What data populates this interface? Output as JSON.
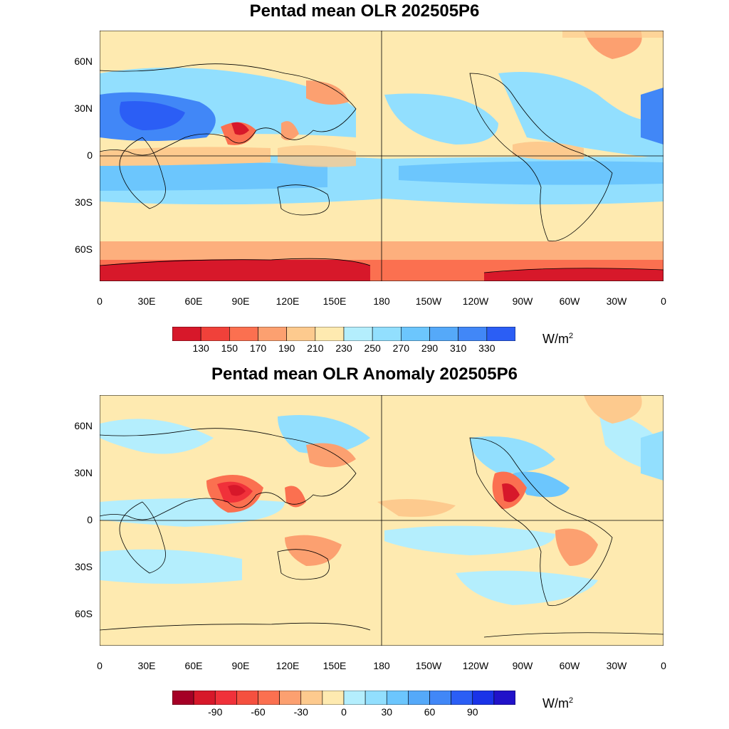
{
  "maps": [
    {
      "id": "top",
      "title": "Pentad mean OLR 202505P6",
      "units": "W/m",
      "units_sup": "2",
      "lat_labels": [
        "60N",
        "30N",
        "0",
        "30S",
        "60S"
      ],
      "lon_labels": [
        "0",
        "30E",
        "60E",
        "90E",
        "120E",
        "150E",
        "180",
        "150W",
        "120W",
        "90W",
        "60W",
        "30W",
        "0"
      ],
      "colorbar": {
        "colors": [
          "#d7182a",
          "#f0413a",
          "#fb7050",
          "#fca070",
          "#fdca8e",
          "#feeab0",
          "#b4eefd",
          "#92dffe",
          "#6cc6fd",
          "#55a9f9",
          "#4187f7",
          "#2b5ef5"
        ],
        "labels": [
          "130",
          "150",
          "170",
          "190",
          "210",
          "230",
          "250",
          "270",
          "290",
          "310",
          "330"
        ]
      }
    },
    {
      "id": "bottom",
      "title": "Pentad mean OLR Anomaly 202505P6",
      "units": "W/m",
      "units_sup": "2",
      "lat_labels": [
        "60N",
        "30N",
        "0",
        "30S",
        "60S"
      ],
      "lon_labels": [
        "0",
        "30E",
        "60E",
        "90E",
        "120E",
        "150E",
        "180",
        "150W",
        "120W",
        "90W",
        "60W",
        "30W",
        "0"
      ],
      "colorbar": {
        "colors": [
          "#a50026",
          "#d7182a",
          "#f0313a",
          "#f5503f",
          "#fb7050",
          "#fca070",
          "#fdca8e",
          "#feeab0",
          "#b4eefd",
          "#92dffe",
          "#6cc6fd",
          "#55a9f9",
          "#4187f7",
          "#2b5ef5",
          "#1a33e8",
          "#2112c9"
        ],
        "labels": [
          "-90",
          "-60",
          "-30",
          "0",
          "30",
          "60",
          "90"
        ]
      }
    }
  ]
}
